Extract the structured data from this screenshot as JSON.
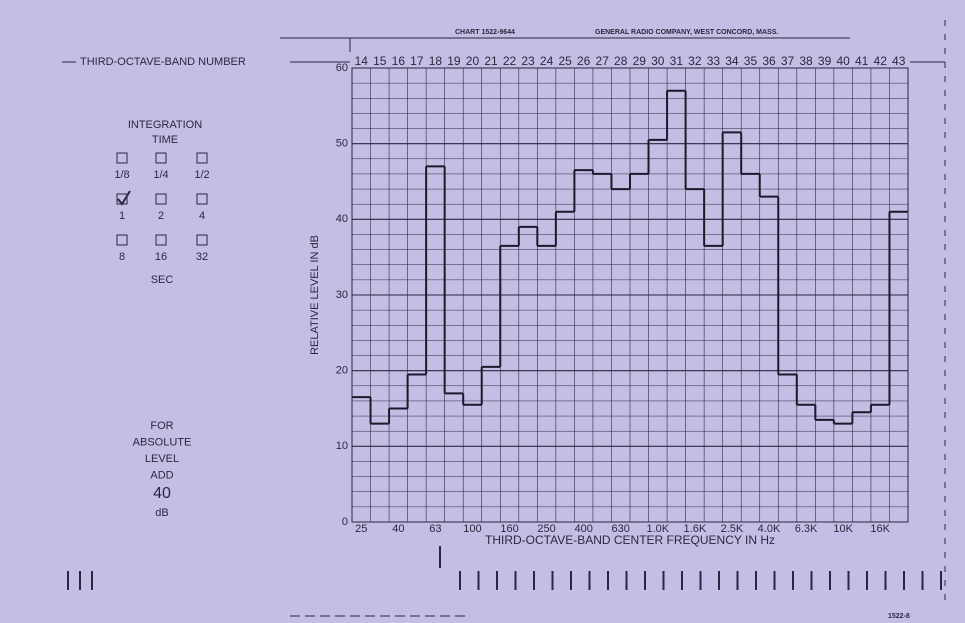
{
  "chart_data": {
    "type": "step",
    "header_chart": "CHART 1522-9644",
    "header_company": "GENERAL RADIO COMPANY, WEST CONCORD, MASS.",
    "band_axis_label": "THIRD-OCTAVE-BAND NUMBER",
    "xlabel": "THIRD-OCTAVE-BAND CENTER FREQUENCY IN Hz",
    "ylabel": "RELATIVE LEVEL IN dB",
    "categories": [
      14,
      15,
      16,
      17,
      18,
      19,
      20,
      21,
      22,
      23,
      24,
      25,
      26,
      27,
      28,
      29,
      30,
      31,
      32,
      33,
      34,
      35,
      36,
      37,
      38,
      39,
      40,
      41,
      42,
      43
    ],
    "frequency_labels": [
      "25",
      null,
      "40",
      null,
      "63",
      null,
      "100",
      null,
      "160",
      null,
      "250",
      null,
      "400",
      null,
      "630",
      null,
      "1.0K",
      null,
      "1.6K",
      null,
      "2.5K",
      null,
      "4.0K",
      null,
      "6.3K",
      null,
      "10K",
      null,
      "16K",
      null
    ],
    "values": [
      16.5,
      13,
      15,
      19.5,
      47,
      17,
      15.5,
      20.5,
      36.5,
      39,
      36.5,
      41,
      46.5,
      46,
      44,
      46,
      50.5,
      57,
      44,
      36.5,
      51.5,
      46,
      43,
      19.5,
      15.5,
      13.5,
      13,
      14.5,
      15.5,
      41
    ],
    "color": "#1a1a2a",
    "ylim": [
      0,
      60
    ],
    "yticks": [
      0,
      10,
      20,
      30,
      40,
      50,
      60
    ],
    "grid": true,
    "integration_title": [
      "INTEGRATION",
      "TIME"
    ],
    "integration_options": [
      {
        "label": "1/8",
        "checked": false
      },
      {
        "label": "1/4",
        "checked": false
      },
      {
        "label": "1/2",
        "checked": false
      },
      {
        "label": "1",
        "checked": true
      },
      {
        "label": "2",
        "checked": false
      },
      {
        "label": "4",
        "checked": false
      },
      {
        "label": "8",
        "checked": false
      },
      {
        "label": "16",
        "checked": false
      },
      {
        "label": "32",
        "checked": false
      }
    ],
    "integration_unit": "SEC",
    "absolute_note": [
      "FOR",
      "ABSOLUTE",
      "LEVEL",
      "ADD"
    ],
    "absolute_add": "40",
    "absolute_unit": "dB",
    "form_number": "1522-8"
  }
}
